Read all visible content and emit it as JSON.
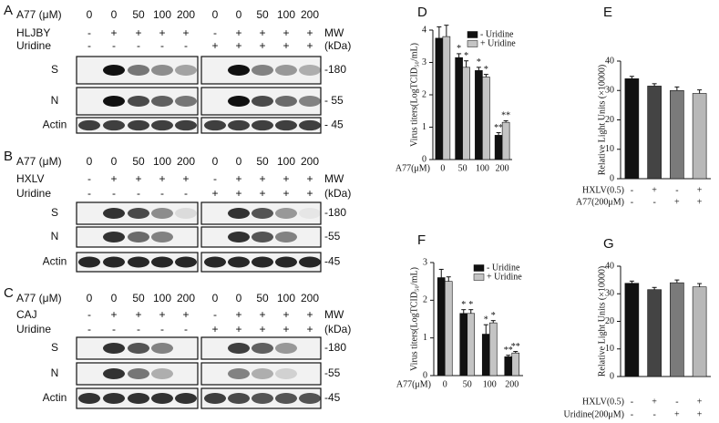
{
  "blots": [
    {
      "label": "A",
      "rows": [
        {
          "label": "A77 (μM)",
          "values": [
            0,
            0,
            50,
            100,
            200,
            0,
            0,
            50,
            100,
            200
          ]
        },
        {
          "label": "HLJBY",
          "values": [
            "-",
            "+",
            "+",
            "+",
            "+",
            "-",
            "+",
            "+",
            "+",
            "+"
          ]
        },
        {
          "label": "Uridine",
          "values": [
            "-",
            "-",
            "-",
            "-",
            "-",
            "+",
            "+",
            "+",
            "+",
            "+"
          ]
        }
      ],
      "mw_header": [
        "MW",
        "(kDa)"
      ],
      "bands": [
        {
          "label": "S",
          "mw": "-180"
        },
        {
          "label": "N",
          "mw": "- 55"
        },
        {
          "label": "Actin",
          "mw": "- 45"
        }
      ]
    },
    {
      "label": "B",
      "rows": [
        {
          "label": "A77 (μM)",
          "values": [
            0,
            0,
            50,
            100,
            200,
            0,
            0,
            50,
            100,
            200
          ]
        },
        {
          "label": "HXLV",
          "values": [
            "-",
            "+",
            "+",
            "+",
            "+",
            "-",
            "+",
            "+",
            "+",
            "+"
          ]
        },
        {
          "label": "Uridine",
          "values": [
            "-",
            "-",
            "-",
            "-",
            "-",
            "+",
            "+",
            "+",
            "+",
            "+"
          ]
        }
      ],
      "mw_header": [
        "MW",
        "(kDa)"
      ],
      "bands": [
        {
          "label": "S",
          "mw": "-180"
        },
        {
          "label": "N",
          "mw": "-55"
        },
        {
          "label": "Actin",
          "mw": "-45"
        }
      ]
    },
    {
      "label": "C",
      "rows": [
        {
          "label": "A77 (μM)",
          "values": [
            0,
            0,
            50,
            100,
            200,
            0,
            0,
            50,
            100,
            200
          ]
        },
        {
          "label": "CAJ",
          "values": [
            "-",
            "+",
            "+",
            "+",
            "+",
            "-",
            "+",
            "+",
            "+",
            "+"
          ]
        },
        {
          "label": "Uridine",
          "values": [
            "-",
            "-",
            "-",
            "-",
            "-",
            "+",
            "+",
            "+",
            "+",
            "+"
          ]
        }
      ],
      "mw_header": [
        "MW",
        "(kDa)"
      ],
      "bands": [
        {
          "label": "S",
          "mw": "-180"
        },
        {
          "label": "N",
          "mw": "-55"
        },
        {
          "label": "Actin",
          "mw": "-45"
        }
      ]
    }
  ],
  "chart_data": [
    {
      "type": "bar",
      "title": "D",
      "ylabel": "Virus titers(LogTCID₅₀/mL)",
      "xlabel": "A77(μM)",
      "categories": [
        0,
        50,
        100,
        200
      ],
      "ylim": [
        0,
        4
      ],
      "yticks": [
        0,
        1,
        2,
        3,
        4
      ],
      "series": [
        {
          "name": "- Uridine",
          "color": "#111111",
          "values": [
            3.75,
            3.15,
            2.75,
            0.75
          ],
          "errors": [
            0.35,
            0.12,
            0.1,
            0.08
          ],
          "annotations": [
            null,
            "*",
            "*",
            "**"
          ]
        },
        {
          "name": "+ Uridine",
          "color": "#c4c4c4",
          "values": [
            3.8,
            2.85,
            2.55,
            1.15
          ],
          "errors": [
            0.35,
            0.2,
            0.08,
            0.05
          ],
          "annotations": [
            null,
            "*",
            "*",
            "**"
          ]
        }
      ]
    },
    {
      "type": "bar",
      "title": "E",
      "ylabel": "Relative Light Units (×10000)",
      "ylim": [
        0,
        40
      ],
      "yticks": [
        0,
        10,
        20,
        30,
        40
      ],
      "colors": [
        "#111111",
        "#444444",
        "#7a7a7a",
        "#b8b8b8"
      ],
      "series": [
        {
          "values": [
            34,
            31.5,
            30,
            29
          ],
          "errors": [
            0.8,
            0.8,
            1.2,
            1.2
          ]
        }
      ],
      "condition_rows": [
        {
          "label": "HXLV(0.5)",
          "values": [
            "-",
            "+",
            "-",
            "+"
          ]
        },
        {
          "label": "A77(200μM)",
          "values": [
            "-",
            "-",
            "+",
            "+"
          ]
        }
      ]
    },
    {
      "type": "bar",
      "title": "F",
      "ylabel": "Virus titers(LogTCID₅₀/mL)",
      "xlabel": "A77(μM)",
      "categories": [
        0,
        50,
        100,
        200
      ],
      "ylim": [
        0,
        3
      ],
      "yticks": [
        0,
        1,
        2,
        3
      ],
      "series": [
        {
          "name": "- Uridine",
          "color": "#111111",
          "values": [
            2.6,
            1.65,
            1.1,
            0.5
          ],
          "errors": [
            0.22,
            0.1,
            0.25,
            0.04
          ],
          "annotations": [
            null,
            "*",
            "*",
            "**"
          ]
        },
        {
          "name": "+ Uridine",
          "color": "#c4c4c4",
          "values": [
            2.5,
            1.65,
            1.4,
            0.6
          ],
          "errors": [
            0.12,
            0.1,
            0.06,
            0.04
          ],
          "annotations": [
            null,
            "*",
            "*",
            "**"
          ]
        }
      ]
    },
    {
      "type": "bar",
      "title": "G",
      "ylabel": "Relative Light Units (×10000)",
      "ylim": [
        0,
        40
      ],
      "yticks": [
        0,
        10,
        20,
        30,
        40
      ],
      "colors": [
        "#111111",
        "#444444",
        "#7a7a7a",
        "#b8b8b8"
      ],
      "series": [
        {
          "values": [
            33.8,
            31.5,
            34,
            32.5
          ],
          "errors": [
            0.8,
            0.8,
            1,
            1.2
          ]
        }
      ],
      "condition_rows": [
        {
          "label": "HXLV(0.5)",
          "values": [
            "-",
            "+",
            "-",
            "+"
          ]
        },
        {
          "label": "Uridine(200μM)",
          "values": [
            "-",
            "-",
            "+",
            "+"
          ]
        }
      ]
    }
  ]
}
